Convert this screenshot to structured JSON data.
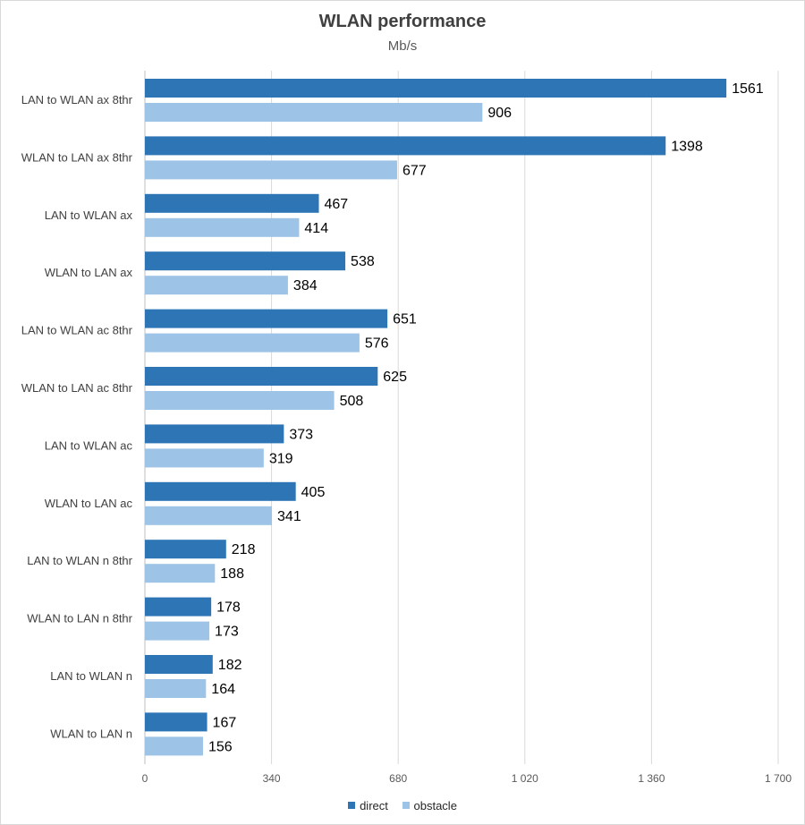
{
  "chart_data": {
    "type": "bar",
    "orientation": "horizontal",
    "title": "WLAN performance",
    "subtitle": "Mb/s",
    "categories": [
      "LAN to WLAN ax 8thr",
      "WLAN to LAN ax 8thr",
      "LAN to WLAN ax",
      "WLAN to LAN ax",
      "LAN to WLAN ac 8thr",
      "WLAN to LAN ac 8thr",
      "LAN to WLAN ac",
      "WLAN to LAN ac",
      "LAN to WLAN n 8thr",
      "WLAN to LAN n 8thr",
      "LAN to WLAN n",
      "WLAN to LAN n"
    ],
    "series": [
      {
        "name": "direct",
        "color": "#2E75B6",
        "values": [
          1561,
          1398,
          467,
          538,
          651,
          625,
          373,
          405,
          218,
          178,
          182,
          167
        ]
      },
      {
        "name": "obstacle",
        "color": "#9DC3E6",
        "values": [
          906,
          677,
          414,
          384,
          576,
          508,
          319,
          341,
          188,
          173,
          164,
          156
        ]
      }
    ],
    "xlim": [
      0,
      1700
    ],
    "xticks": [
      0,
      340,
      680,
      1020,
      1360,
      1700
    ],
    "xtick_labels": [
      "0",
      "340",
      "680",
      "1 020",
      "1 360",
      "1 700"
    ],
    "grid": true,
    "legend": "bottom"
  }
}
